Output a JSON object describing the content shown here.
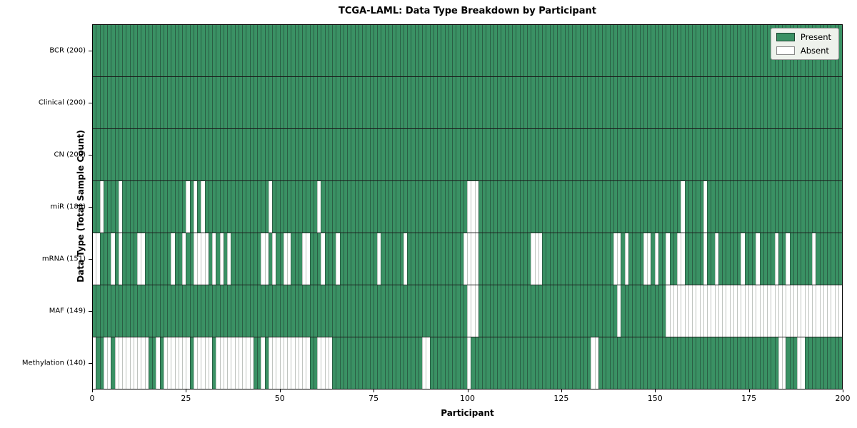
{
  "chart_data": {
    "type": "heatmap",
    "title": "TCGA-LAML: Data Type Breakdown by Participant",
    "xlabel": "Participant",
    "ylabel": "Data Type (Total Sample Count)",
    "x_ticks": [
      0,
      25,
      50,
      75,
      100,
      125,
      150,
      175,
      200
    ],
    "x_range": [
      0,
      200
    ],
    "n_participants": 200,
    "grid": "cell-borders",
    "legend_position": "upper-right",
    "legend": {
      "present_label": "Present",
      "absent_label": "Absent"
    },
    "colors": {
      "present_fill": "#3a9164",
      "present_edge": "#2a5e44",
      "absent_fill": "#ffffff",
      "absent_edge": "#bfc3bf",
      "row_divider": "#1a1a1a",
      "legend_bg": "#eef2ec"
    },
    "rows": [
      {
        "name": "BCR",
        "label": "BCR (200)",
        "present_count": 200,
        "absent_participants": []
      },
      {
        "name": "Clinical",
        "label": "Clinical (200)",
        "present_count": 200,
        "absent_participants": []
      },
      {
        "name": "CN",
        "label": "CN (200)",
        "present_count": 200,
        "absent_participants": []
      },
      {
        "name": "miR",
        "label": "miR (188)",
        "present_count": 188,
        "absent_participants": [
          2,
          7,
          25,
          27,
          29,
          47,
          60,
          100,
          101,
          102,
          157,
          163
        ]
      },
      {
        "name": "mRNA",
        "label": "mRNA (151)",
        "present_count": 151,
        "absent_participants": [
          0,
          1,
          5,
          7,
          12,
          13,
          21,
          24,
          27,
          28,
          29,
          30,
          32,
          34,
          36,
          45,
          46,
          48,
          51,
          52,
          56,
          57,
          61,
          65,
          76,
          83,
          99,
          100,
          101,
          102,
          117,
          118,
          119,
          139,
          140,
          142,
          147,
          148,
          150,
          153,
          156,
          157,
          163,
          166,
          173,
          177,
          182,
          185,
          192
        ]
      },
      {
        "name": "MAF",
        "label": "MAF (149)",
        "present_count": 149,
        "absent_participants": [
          100,
          101,
          102,
          140,
          153,
          154,
          155,
          156,
          157,
          158,
          159,
          160,
          161,
          162,
          163,
          164,
          165,
          166,
          167,
          168,
          169,
          170,
          171,
          172,
          173,
          174,
          175,
          176,
          177,
          178,
          179,
          180,
          181,
          182,
          183,
          184,
          185,
          186,
          187,
          188,
          189,
          190,
          191,
          192,
          193,
          194,
          195,
          196,
          197,
          198,
          199
        ]
      },
      {
        "name": "Methylation",
        "label": "Methylation (140)",
        "present_count": 140,
        "absent_participants": [
          0,
          3,
          4,
          6,
          7,
          8,
          9,
          10,
          11,
          12,
          13,
          14,
          17,
          19,
          20,
          21,
          22,
          23,
          24,
          25,
          27,
          28,
          29,
          30,
          31,
          33,
          34,
          35,
          36,
          37,
          38,
          39,
          40,
          41,
          42,
          45,
          47,
          48,
          49,
          50,
          51,
          52,
          53,
          54,
          55,
          56,
          57,
          60,
          61,
          62,
          63,
          88,
          89,
          100,
          133,
          134,
          183,
          184,
          188,
          189
        ]
      }
    ]
  }
}
